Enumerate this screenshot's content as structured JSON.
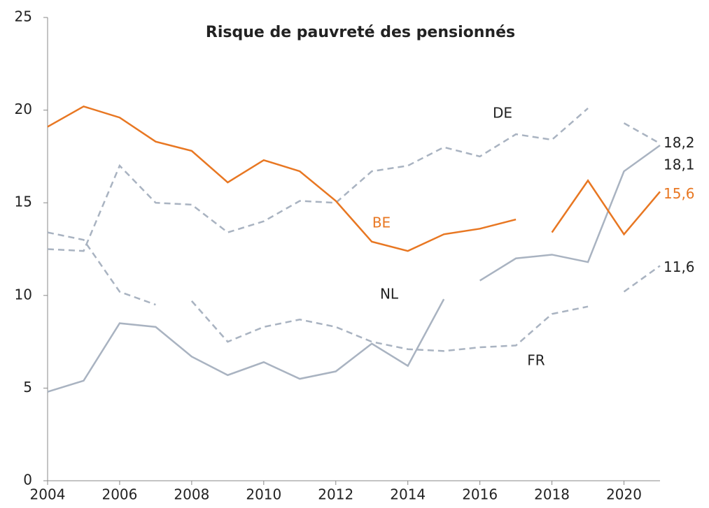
{
  "chart_data": {
    "type": "line",
    "title": "Risque de pauvreté des pensionnés",
    "xlim": [
      2004,
      2021
    ],
    "xticks": [
      2004,
      2006,
      2008,
      2010,
      2012,
      2014,
      2016,
      2018,
      2020
    ],
    "ylim": [
      0,
      25
    ],
    "yticks": [
      0,
      5,
      10,
      15,
      20,
      25
    ],
    "grid": false,
    "series": [
      {
        "name": "DE",
        "color": "#a9b3c1",
        "dashed": true,
        "pieces": [
          {
            "x": [
              2004,
              2005,
              2006,
              2007,
              2008,
              2009,
              2010,
              2011,
              2012,
              2013,
              2014,
              2015,
              2016,
              2017,
              2018,
              2019
            ],
            "values": [
              12.5,
              12.4,
              17.0,
              15.0,
              14.9,
              13.4,
              14.0,
              15.1,
              15.0,
              16.7,
              17.0,
              18.0,
              17.5,
              18.7,
              18.4,
              20.1
            ]
          },
          {
            "x": [
              2020,
              2021
            ],
            "values": [
              19.3,
              18.2
            ],
            "value_labels": [
              null,
              "18,2"
            ]
          }
        ]
      },
      {
        "name": "NL",
        "color": "#a9b3c1",
        "dashed": false,
        "pieces": [
          {
            "x": [
              2004,
              2005,
              2006,
              2007,
              2008,
              2009,
              2010,
              2011,
              2012,
              2013,
              2014,
              2015
            ],
            "values": [
              4.8,
              5.4,
              8.5,
              8.3,
              6.7,
              5.7,
              6.4,
              5.5,
              5.9,
              7.4,
              6.2,
              9.8
            ]
          },
          {
            "x": [
              2016,
              2017,
              2018,
              2019,
              2020,
              2021
            ],
            "values": [
              10.8,
              12.0,
              12.2,
              11.8,
              16.7,
              18.1
            ],
            "value_labels": [
              null,
              null,
              null,
              null,
              null,
              "18,1"
            ]
          }
        ]
      },
      {
        "name": "BE",
        "color": "#e87722",
        "dashed": false,
        "pieces": [
          {
            "x": [
              2004,
              2005,
              2006,
              2007,
              2008,
              2009,
              2010,
              2011,
              2012,
              2013,
              2014,
              2015,
              2016,
              2017
            ],
            "values": [
              19.1,
              20.2,
              19.6,
              18.3,
              17.8,
              16.1,
              17.3,
              16.7,
              15.1,
              12.9,
              12.4,
              13.3,
              13.6,
              14.1
            ]
          },
          {
            "x": [
              2018,
              2019,
              2020,
              2021
            ],
            "values": [
              13.4,
              16.2,
              13.3,
              15.6
            ],
            "value_labels": [
              null,
              null,
              null,
              "15,6"
            ]
          }
        ]
      },
      {
        "name": "FR",
        "color": "#a9b3c1",
        "dashed": true,
        "pieces": [
          {
            "x": [
              2004,
              2005,
              2006,
              2007
            ],
            "values": [
              13.4,
              13.0,
              10.2,
              9.5
            ]
          },
          {
            "x": [
              2008,
              2009,
              2010,
              2011,
              2012,
              2013,
              2014,
              2015,
              2016,
              2017,
              2018,
              2019
            ],
            "values": [
              9.7,
              7.5,
              8.3,
              8.7,
              8.3,
              7.5,
              7.1,
              7.0,
              7.2,
              7.3,
              9.0,
              9.4
            ]
          },
          {
            "x": [
              2020,
              2021
            ],
            "values": [
              10.2,
              11.6
            ],
            "value_labels": [
              null,
              "11,6"
            ]
          }
        ]
      }
    ]
  }
}
